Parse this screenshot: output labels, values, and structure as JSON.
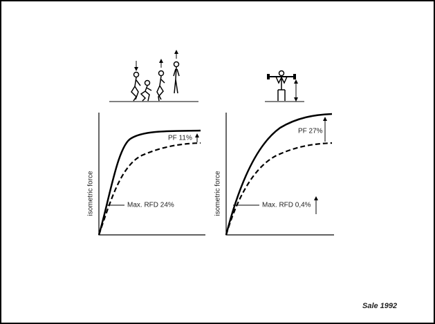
{
  "left_panel": {
    "y_label": "isometric force",
    "peak_force_label": "PF 11%",
    "rfd_label": "Max. RFD 24%"
  },
  "right_panel": {
    "y_label": "isometric force",
    "peak_force_label": "PF 27%",
    "rfd_label": "Max. RFD 0,4%"
  },
  "citation": "Sale 1992"
}
